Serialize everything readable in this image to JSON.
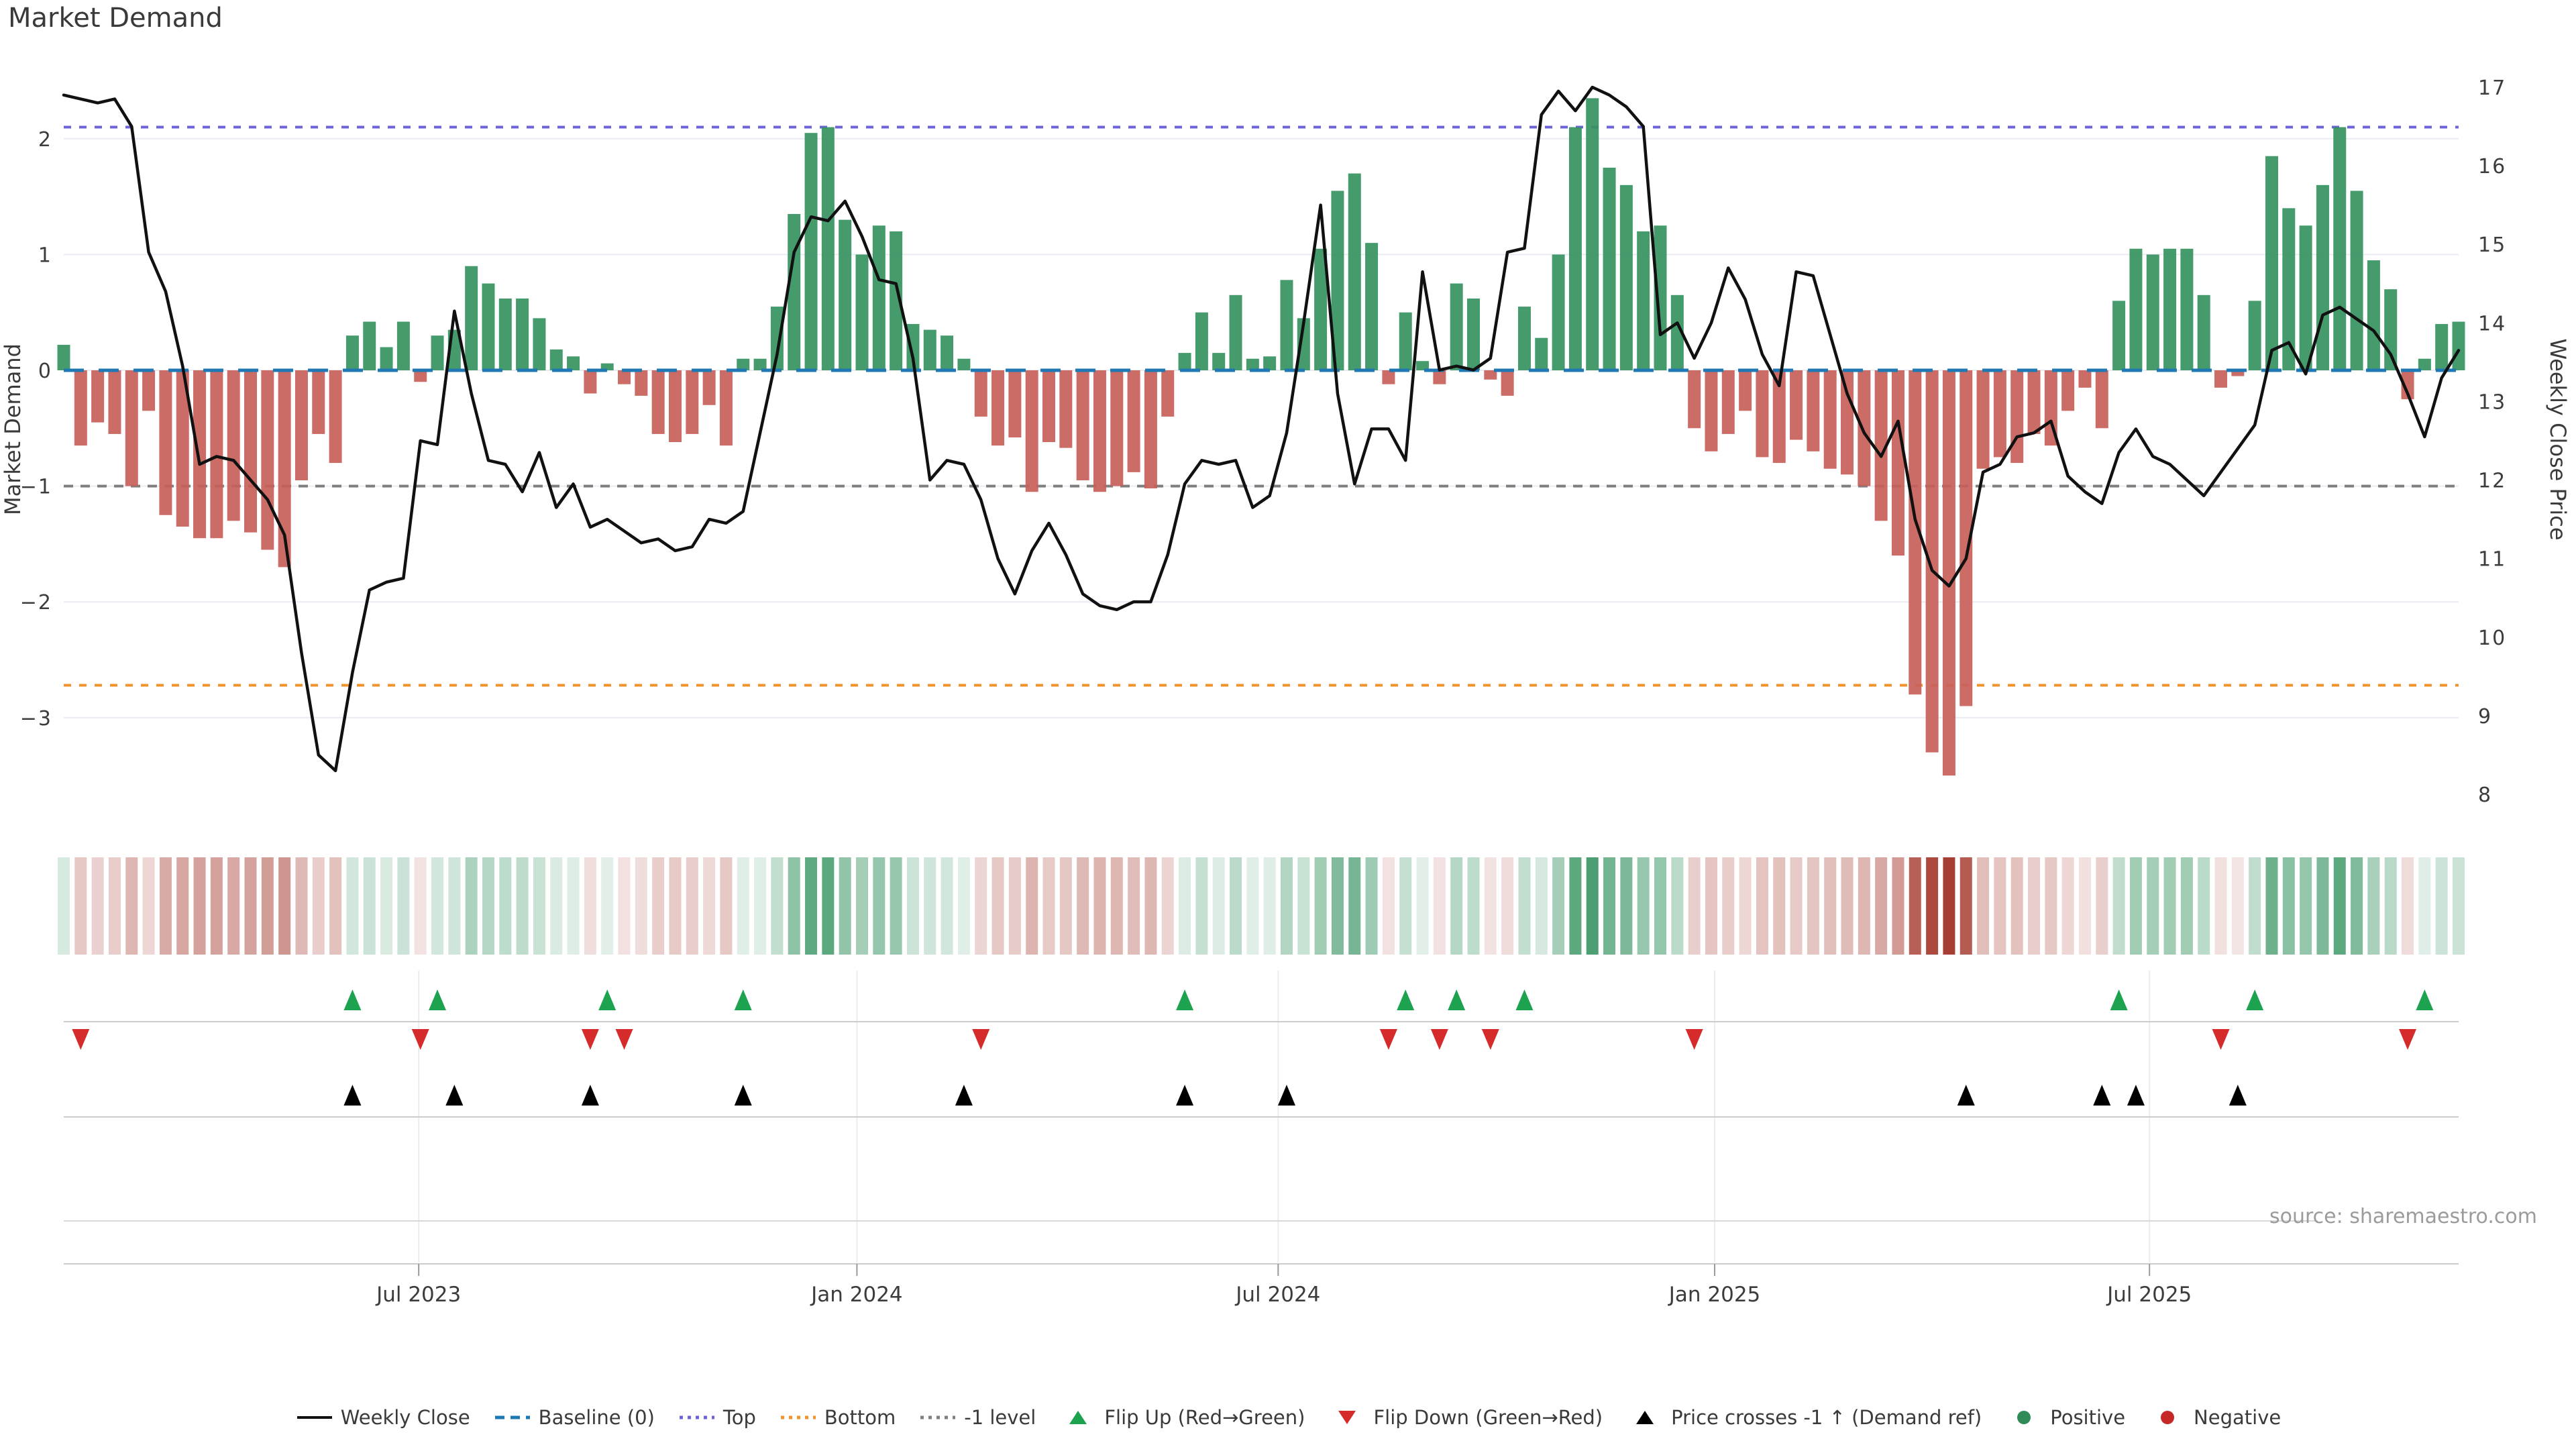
{
  "page": {
    "title": "Market Demand"
  },
  "chart_data": {
    "type": "combo-bar-line",
    "title": "Market Demand",
    "source": "source: sharemaestro.com",
    "left_axis": {
      "label": "Market Demand",
      "ticks": [
        2,
        1,
        0,
        -1,
        -2,
        -3
      ],
      "range": [
        -3.8,
        2.65
      ]
    },
    "right_axis": {
      "label": "Weekly Close Price",
      "ticks": [
        17,
        16,
        15,
        14,
        13,
        12,
        11,
        10,
        9,
        8
      ],
      "range": [
        8,
        17
      ]
    },
    "x_axis": {
      "tick_labels": [
        "Jul 2023",
        "Jan 2024",
        "Jul 2024",
        "Jan 2025",
        "Jul 2025"
      ],
      "tick_weeks": [
        20.9,
        46.7,
        71.5,
        97.2,
        122.8
      ]
    },
    "ref_lines": {
      "baseline": 0,
      "top": 2.1,
      "bottom": -2.72,
      "minus_one": -1
    },
    "weeks": 142,
    "demand": [
      0.22,
      -0.65,
      -0.45,
      -0.55,
      -1.0,
      -0.35,
      -1.25,
      -1.35,
      -1.45,
      -1.45,
      -1.3,
      -1.4,
      -1.55,
      -1.7,
      -0.95,
      -0.55,
      -0.8,
      0.3,
      0.42,
      0.2,
      0.42,
      -0.1,
      0.3,
      0.35,
      0.9,
      0.75,
      0.62,
      0.62,
      0.45,
      0.18,
      0.12,
      -0.2,
      0.06,
      -0.12,
      -0.22,
      -0.55,
      -0.62,
      -0.55,
      -0.3,
      -0.65,
      0.1,
      0.1,
      0.55,
      1.35,
      2.05,
      2.1,
      1.3,
      1.0,
      1.25,
      1.2,
      0.4,
      0.35,
      0.3,
      0.1,
      -0.4,
      -0.65,
      -0.58,
      -1.05,
      -0.62,
      -0.67,
      -0.95,
      -1.05,
      -1.0,
      -0.88,
      -1.02,
      -0.4,
      0.15,
      0.5,
      0.15,
      0.65,
      0.1,
      0.12,
      0.78,
      0.45,
      1.05,
      1.55,
      1.7,
      1.1,
      -0.12,
      0.5,
      0.08,
      -0.12,
      0.75,
      0.62,
      -0.08,
      -0.22,
      0.55,
      0.28,
      1.0,
      2.1,
      2.35,
      1.75,
      1.6,
      1.2,
      1.25,
      0.65,
      -0.5,
      -0.7,
      -0.55,
      -0.35,
      -0.75,
      -0.8,
      -0.6,
      -0.7,
      -0.85,
      -0.9,
      -1.0,
      -1.3,
      -1.6,
      -2.8,
      -3.3,
      -3.5,
      -2.9,
      -0.85,
      -0.75,
      -0.8,
      -0.55,
      -0.65,
      -0.35,
      -0.15,
      -0.5,
      0.6,
      1.05,
      1.0,
      1.05,
      1.05,
      0.65,
      -0.15,
      -0.05,
      0.6,
      1.85,
      1.4,
      1.25,
      1.6,
      2.1,
      1.55,
      0.95,
      0.7,
      -0.25,
      0.1,
      0.4,
      0.42
    ],
    "price": [
      16.9,
      16.85,
      16.8,
      16.85,
      16.5,
      14.9,
      14.4,
      13.45,
      12.2,
      12.3,
      12.25,
      12.0,
      11.75,
      11.3,
      9.8,
      8.5,
      8.3,
      9.55,
      10.6,
      10.7,
      10.75,
      12.5,
      12.45,
      14.15,
      13.1,
      12.25,
      12.2,
      11.85,
      12.35,
      11.65,
      11.95,
      11.4,
      11.5,
      11.35,
      11.2,
      11.25,
      11.1,
      11.15,
      11.5,
      11.45,
      11.6,
      12.6,
      13.6,
      14.9,
      15.35,
      15.3,
      15.55,
      15.1,
      14.55,
      14.5,
      13.55,
      12.0,
      12.25,
      12.2,
      11.75,
      11.0,
      10.55,
      11.1,
      11.45,
      11.05,
      10.55,
      10.4,
      10.35,
      10.45,
      10.45,
      11.05,
      11.95,
      12.25,
      12.2,
      12.25,
      11.65,
      11.8,
      12.6,
      14.0,
      15.5,
      13.1,
      11.95,
      12.65,
      12.65,
      12.25,
      14.65,
      13.4,
      13.45,
      13.4,
      13.55,
      14.9,
      14.95,
      16.65,
      16.95,
      16.7,
      17.0,
      16.9,
      16.75,
      16.5,
      13.85,
      14.0,
      13.55,
      14.0,
      14.7,
      14.3,
      13.6,
      13.2,
      14.65,
      14.6,
      13.85,
      13.1,
      12.6,
      12.3,
      12.75,
      11.5,
      10.85,
      10.65,
      11.0,
      12.1,
      12.2,
      12.55,
      12.6,
      12.75,
      12.05,
      11.85,
      11.7,
      12.35,
      12.65,
      12.3,
      12.2,
      12.0,
      11.8,
      12.1,
      12.4,
      12.7,
      13.65,
      13.75,
      13.35,
      14.1,
      14.2,
      14.05,
      13.9,
      13.6,
      13.1,
      12.55,
      13.3,
      13.65
    ],
    "markers": {
      "flip_up": [
        17,
        22,
        32,
        40,
        66,
        79,
        82,
        86,
        121,
        129,
        139
      ],
      "flip_down": [
        1,
        21,
        31,
        33,
        54,
        78,
        81,
        84,
        96,
        127,
        138
      ],
      "price_cross": [
        17,
        23,
        31,
        40,
        53,
        66,
        72,
        112,
        120,
        122,
        128
      ]
    },
    "colors": {
      "positive_bar": "#35935f",
      "negative_bar": "#c85f5a",
      "price_line": "#111111",
      "baseline": "#1f77b4",
      "top": "#6c63d8",
      "bottom": "#f0932a",
      "minus_one": "#7f7f7f",
      "flip_up": "#1da34f",
      "flip_down": "#d62b2b",
      "price_cross": "#000000",
      "heat_pos_base": "#2e8f5b",
      "heat_neg_base": "#a5392e",
      "grid": "#e9ebf3",
      "separator": "#cccccc",
      "tick_text": "#3c3c3c"
    },
    "legend": [
      {
        "symbol": "solid-line",
        "color": "#111111",
        "label": "Weekly Close"
      },
      {
        "symbol": "dashed-line",
        "color": "#1f77b4",
        "label": "Baseline (0)"
      },
      {
        "symbol": "dotted-line",
        "color": "#6c63d8",
        "label": "Top"
      },
      {
        "symbol": "dotted-line",
        "color": "#f0932a",
        "label": "Bottom"
      },
      {
        "symbol": "dotted-line",
        "color": "#7f7f7f",
        "label": "-1 level"
      },
      {
        "symbol": "triangle-up",
        "color": "#1da34f",
        "label": "Flip Up (Red→Green)"
      },
      {
        "symbol": "triangle-down",
        "color": "#d62b2b",
        "label": "Flip Down (Green→Red)"
      },
      {
        "symbol": "triangle-up",
        "color": "#000000",
        "label": "Price crosses -1 ↑ (Demand ref)"
      },
      {
        "symbol": "circle",
        "color": "#2e8b57",
        "label": "Positive"
      },
      {
        "symbol": "circle",
        "color": "#c62828",
        "label": "Negative"
      }
    ]
  }
}
